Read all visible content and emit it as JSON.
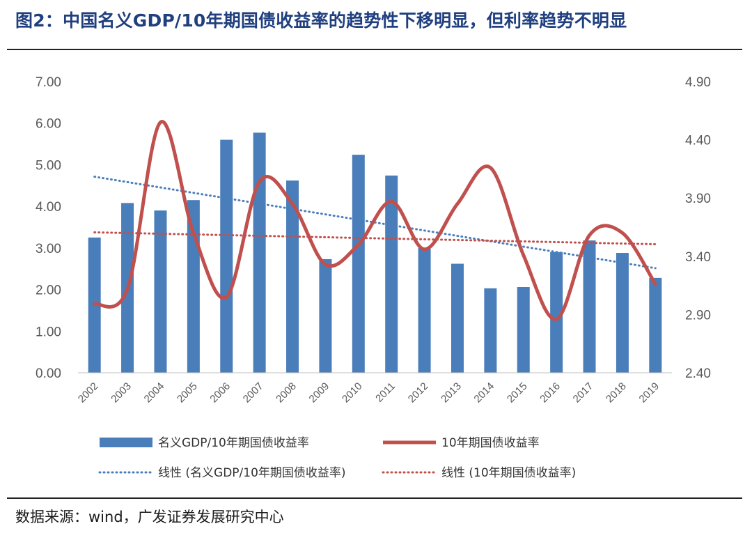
{
  "title": "图2：中国名义GDP/10年期国债收益率的趋势性下移明显，但利率趋势不明显",
  "source": "数据来源：wind，广发证券发展研究中心",
  "colors": {
    "bar": "#4a7ebb",
    "line": "#c0504d",
    "title": "#1f3f7f"
  },
  "chart_data": {
    "type": "bar",
    "categories": [
      "2002",
      "2003",
      "2004",
      "2005",
      "2006",
      "2007",
      "2008",
      "2009",
      "2010",
      "2011",
      "2012",
      "2013",
      "2014",
      "2015",
      "2016",
      "2017",
      "2018",
      "2019"
    ],
    "y_left": {
      "ylim": [
        0,
        7
      ],
      "ticks": [
        "0.00",
        "1.00",
        "2.00",
        "3.00",
        "4.00",
        "5.00",
        "6.00",
        "7.00"
      ]
    },
    "y_right": {
      "ylim": [
        2.4,
        4.9
      ],
      "ticks": [
        "2.40",
        "2.90",
        "3.40",
        "3.90",
        "4.40",
        "4.90"
      ]
    },
    "series": [
      {
        "name": "名义GDP/10年期国债收益率",
        "type": "bar",
        "axis": "left",
        "values": [
          3.25,
          4.08,
          3.9,
          4.15,
          5.6,
          5.77,
          4.62,
          2.73,
          5.24,
          4.74,
          3.0,
          2.62,
          2.03,
          2.06,
          2.9,
          3.18,
          2.88,
          2.28
        ]
      },
      {
        "name": "10年期国债收益率",
        "type": "line",
        "smooth": true,
        "axis": "right",
        "values": [
          2.99,
          3.12,
          4.55,
          3.6,
          3.05,
          4.04,
          3.85,
          3.33,
          3.5,
          3.87,
          3.46,
          3.85,
          4.16,
          3.41,
          2.86,
          3.58,
          3.6,
          3.16
        ]
      },
      {
        "name": "线性 (名义GDP/10年期国债收益率)",
        "type": "trendline",
        "axis": "left",
        "of": 0,
        "style": "dotted"
      },
      {
        "name": "线性 (10年期国债收益率)",
        "type": "trendline",
        "axis": "right",
        "of": 1,
        "style": "dotted"
      }
    ],
    "legend": "bottom",
    "grid": false
  }
}
